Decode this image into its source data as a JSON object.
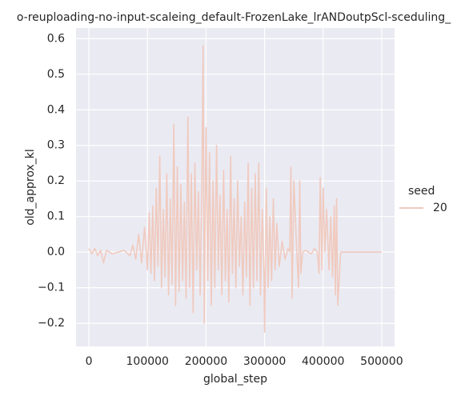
{
  "chart_data": {
    "type": "line",
    "title": "o-reuploading-no-input-scaleing_default-FrozenLake_lrANDoutpScl-sceduling_",
    "x_label": "global_step",
    "y_label": "old_approx_kl",
    "legend_title": "seed",
    "x": [
      0,
      5000,
      10000,
      15000,
      20000,
      25000,
      30000,
      40000,
      50000,
      60000,
      70000,
      75000,
      80000,
      85000,
      90000,
      95000,
      100000,
      103000,
      106000,
      109000,
      112000,
      115000,
      118000,
      121000,
      124000,
      127000,
      130000,
      133000,
      136000,
      139000,
      142000,
      145000,
      148000,
      151000,
      154000,
      157000,
      160000,
      163000,
      166000,
      169000,
      172000,
      175000,
      178000,
      181000,
      184000,
      187000,
      190000,
      193000,
      195000,
      197000,
      200000,
      203000,
      206000,
      209000,
      212000,
      215000,
      218000,
      221000,
      224000,
      227000,
      230000,
      233000,
      236000,
      239000,
      242000,
      245000,
      248000,
      251000,
      254000,
      257000,
      260000,
      263000,
      266000,
      269000,
      272000,
      275000,
      278000,
      281000,
      284000,
      287000,
      290000,
      293000,
      296000,
      299000,
      300000,
      303000,
      306000,
      309000,
      312000,
      315000,
      318000,
      321000,
      325000,
      330000,
      335000,
      340000,
      343000,
      345000,
      347000,
      350000,
      355000,
      358000,
      360000,
      362000,
      365000,
      370000,
      375000,
      380000,
      385000,
      390000,
      393000,
      395000,
      398000,
      400000,
      403000,
      406000,
      410000,
      413000,
      416000,
      419000,
      421000,
      423000,
      425000,
      430000,
      450000,
      475000,
      500000
    ],
    "series": [
      {
        "name": "20",
        "color": "#f0cabf",
        "values": [
          0.01,
          -0.005,
          0.01,
          -0.01,
          0.005,
          -0.03,
          0.005,
          -0.005,
          0.0,
          0.005,
          -0.01,
          0.02,
          -0.02,
          0.05,
          -0.03,
          0.07,
          -0.05,
          0.11,
          -0.06,
          0.13,
          -0.08,
          0.18,
          -0.04,
          0.27,
          -0.1,
          0.12,
          -0.07,
          0.22,
          -0.12,
          0.15,
          -0.09,
          0.36,
          -0.15,
          0.24,
          -0.11,
          0.19,
          -0.08,
          0.14,
          -0.13,
          0.38,
          -0.1,
          0.22,
          -0.17,
          0.25,
          -0.05,
          0.17,
          -0.12,
          0.2,
          0.58,
          -0.2,
          0.35,
          -0.08,
          0.28,
          -0.15,
          0.2,
          -0.1,
          0.3,
          -0.05,
          0.16,
          -0.12,
          0.23,
          -0.08,
          0.12,
          -0.14,
          0.27,
          -0.06,
          0.15,
          -0.1,
          0.2,
          -0.04,
          0.1,
          -0.12,
          0.14,
          -0.07,
          0.25,
          -0.15,
          0.18,
          -0.1,
          0.22,
          -0.08,
          0.25,
          -0.12,
          0.12,
          -0.06,
          -0.225,
          0.18,
          -0.1,
          0.1,
          -0.08,
          0.15,
          -0.05,
          0.08,
          -0.04,
          0.03,
          -0.02,
          0.01,
          0.0,
          0.24,
          -0.13,
          0.2,
          0.0,
          -0.1,
          0.2,
          -0.06,
          0.0,
          0.005,
          0.0,
          -0.005,
          0.01,
          0.0,
          -0.06,
          0.21,
          -0.05,
          0.18,
          0.0,
          0.12,
          -0.05,
          0.1,
          -0.07,
          0.13,
          -0.12,
          0.15,
          -0.15,
          0.0,
          0.0,
          0.0,
          0.0
        ]
      }
    ],
    "xlim": [
      -22000,
      522000
    ],
    "ylim": [
      -0.265,
      0.63
    ],
    "xticks": [
      0,
      100000,
      200000,
      300000,
      400000,
      500000
    ],
    "yticks": [
      {
        "value": -0.2,
        "label": "−0.2"
      },
      {
        "value": -0.1,
        "label": "−0.1"
      },
      {
        "value": 0,
        "label": "0.0"
      },
      0.1,
      0.2,
      0.3,
      0.4,
      0.5,
      0.6
    ],
    "grid": true,
    "legend": "right"
  }
}
